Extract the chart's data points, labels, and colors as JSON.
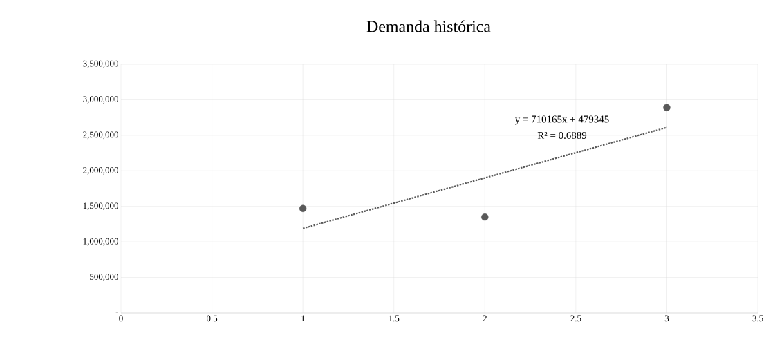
{
  "chart_data": {
    "type": "scatter",
    "title": "Demanda histórica",
    "series": [
      {
        "color": "#595959",
        "x": [
          1,
          2,
          3
        ],
        "values": [
          1470000,
          1350000,
          2890000
        ],
        "marker": "circle"
      },
      {
        "type": "line",
        "color": "#595959",
        "x": [
          1,
          3
        ],
        "values": [
          1190000,
          2610000
        ],
        "line_style": "dotted",
        "marker": "none"
      }
    ],
    "xlim": [
      0,
      3.5
    ],
    "ylim": [
      0,
      3500000
    ],
    "xticks": [
      0,
      0.5,
      1,
      1.5,
      2,
      2.5,
      3,
      3.5
    ],
    "yticks": [
      {
        "value": 0,
        "label": "-"
      },
      {
        "value": 500000,
        "label": "500,000"
      },
      {
        "value": 1000000,
        "label": "1,000,000"
      },
      {
        "value": 1500000,
        "label": "1,500,000"
      },
      {
        "value": 2000000,
        "label": "2,000,000"
      },
      {
        "value": 2500000,
        "label": "2,500,000"
      },
      {
        "value": 3000000,
        "label": "3,000,000"
      },
      {
        "value": 3500000,
        "label": "3,500,000"
      }
    ],
    "grid": true,
    "annotations": [
      "y = 710165x + 479345",
      "R² = 0.6889"
    ]
  }
}
